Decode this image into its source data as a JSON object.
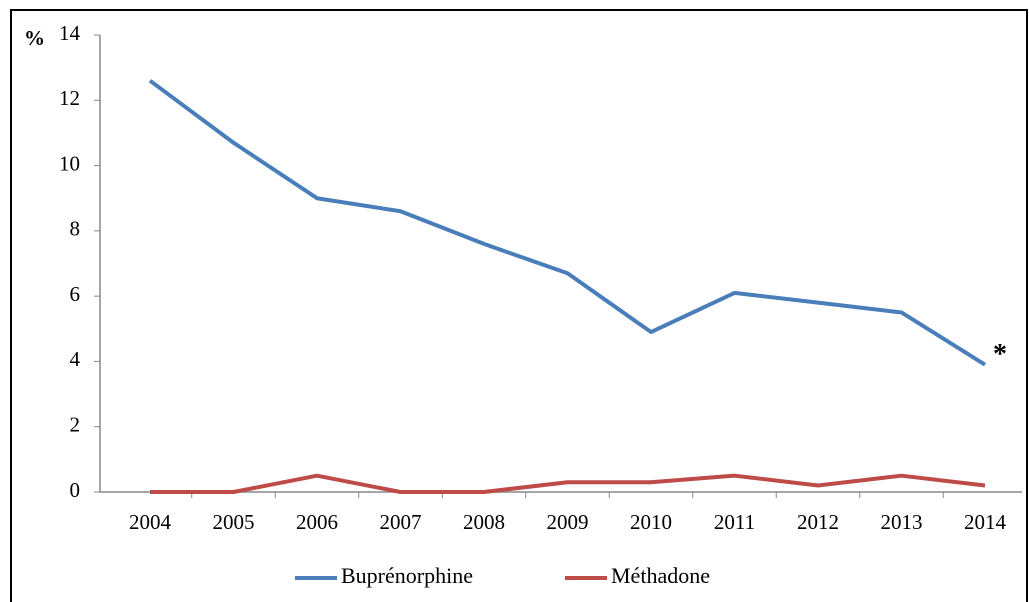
{
  "chart_data": {
    "type": "line",
    "y_label": "%",
    "categories": [
      "2004",
      "2005",
      "2006",
      "2007",
      "2008",
      "2009",
      "2010",
      "2011",
      "2012",
      "2013",
      "2014"
    ],
    "series": [
      {
        "name": "Buprénorphine",
        "color": "#4a7ebb",
        "values": [
          12.6,
          10.7,
          9.0,
          8.6,
          7.6,
          6.7,
          4.9,
          6.1,
          5.8,
          5.5,
          3.9
        ]
      },
      {
        "name": "Méthadone",
        "color": "#be4b48",
        "values": [
          0,
          0,
          0.5,
          0,
          0,
          0.3,
          0.3,
          0.5,
          0.2,
          0.5,
          0.2
        ]
      }
    ],
    "annotation": "*",
    "ylim": [
      0,
      14
    ],
    "yticks": [
      0,
      2,
      4,
      6,
      8,
      10,
      12,
      14
    ],
    "grid": false,
    "legend": "bottom"
  }
}
